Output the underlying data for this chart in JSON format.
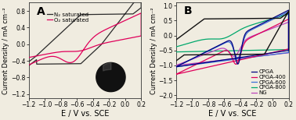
{
  "panel_A": {
    "label": "A",
    "xlim": [
      -1.2,
      0.2
    ],
    "ylim": [
      -1.3,
      1.0
    ],
    "xlabel": "E / V vs. SCE",
    "ylabel": "Current Density / mA cm⁻²",
    "yticks": [
      -1.2,
      -0.8,
      -0.4,
      0.0,
      0.4,
      0.8
    ],
    "xticks": [
      -1.2,
      -1.0,
      -0.8,
      -0.6,
      -0.4,
      -0.2,
      0.0,
      0.2
    ],
    "legend": [
      "N₂ saturated",
      "O₂ saturated"
    ],
    "colors": [
      "#2a2a2a",
      "#e0005a"
    ]
  },
  "panel_B": {
    "label": "B",
    "xlim": [
      -1.2,
      0.2
    ],
    "ylim": [
      -2.1,
      1.1
    ],
    "xlabel": "E / V vs. SCE",
    "ylabel": "Current Density / mA cm⁻²",
    "yticks": [
      -2.0,
      -1.5,
      -1.0,
      -0.5,
      0.0,
      0.5,
      1.0
    ],
    "xticks": [
      -1.2,
      -1.0,
      -0.8,
      -0.6,
      -0.4,
      -0.2,
      0.0,
      0.2
    ],
    "legend": [
      "CPGA",
      "CPGA-400",
      "CPGA-600",
      "CPGA-800",
      "NG"
    ],
    "colors": [
      "#000080",
      "#e0005a",
      "#3a6fd8",
      "#00a86b",
      "#bb44bb"
    ]
  },
  "bg_color": "#f0ece0",
  "font_size": 7
}
